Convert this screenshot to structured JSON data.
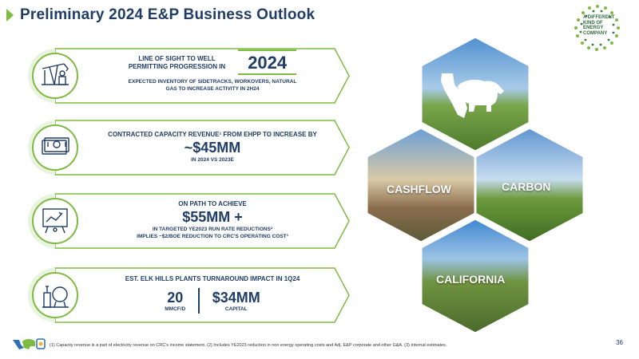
{
  "title": "Preliminary 2024 E&P Business Outlook",
  "logo_text": [
    "A DIFFERENT",
    "KIND OF ENERGY",
    "COMPANY"
  ],
  "cards": [
    {
      "line1": "LINE OF SIGHT TO WELL",
      "line2": "PERMITTING PROGRESSION IN",
      "highlight": "2024",
      "desc1": "EXPECTED INVENTORY OF SIDETRACKS, WORKOVERS, NATURAL",
      "desc2": "GAS TO INCREASE ACTIVITY IN 2H24",
      "icon": "oil-pump-icon"
    },
    {
      "line1": "CONTRACTED CAPACITY REVENUE¹ FROM EHPP TO INCREASE BY",
      "highlight": "~$45MM",
      "desc1": "IN 2024 VS 2023E",
      "icon": "cash-icon"
    },
    {
      "line1": "ON PATH TO ACHIEVE",
      "highlight": "$55MM +",
      "desc1": "IN TARGETED YE2023 RUN RATE REDUCTIONS²",
      "desc2": "IMPLIES ~$2/BOE REDUCTION TO CRC'S OPERATING COST³",
      "icon": "presentation-board-icon"
    },
    {
      "line1": "EST. ELK HILLS PLANTS TURNAROUND IMPACT IN 1Q24",
      "stat1_value": "20",
      "stat1_unit": "MMCF/D",
      "stat2_value": "$34MM",
      "stat2_unit": "CAPITAL",
      "icon": "plant-tanks-icon"
    }
  ],
  "hexagons": [
    {
      "label": "",
      "icon": "california-bear-icon"
    },
    {
      "label": "CASHFLOW"
    },
    {
      "label": "CARBON"
    },
    {
      "label": "CALIFORNIA"
    }
  ],
  "footnote": "(1) Capacity revenue is a part of electricity revenue on CRC's income statement. (2) Includes YE2023 reduction in non energy operating costs and Adj. E&P corporate and other G&A. (3) Internal estimates.",
  "page_number": "36",
  "colors": {
    "navy": "#1f3d66",
    "green": "#7dbb42",
    "light_green": "#e9f3df"
  }
}
